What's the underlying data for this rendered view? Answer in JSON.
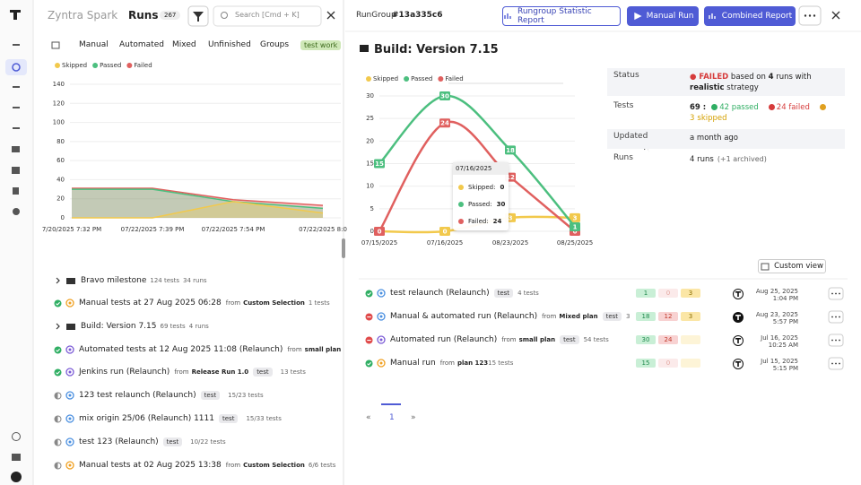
{
  "header": {
    "app": "Zyntra Spark",
    "section": "Runs",
    "count": "267",
    "search": "Search [Cmd + K]"
  },
  "tabs": [
    "Manual",
    "Automated",
    "Mixed",
    "Unfinished",
    "Groups",
    "test work"
  ],
  "left_chart": {
    "type": "area",
    "categories": [
      "7/20/2025 7:32 PM",
      "07/22/2025 7:39 PM",
      "07/22/2025 7:54 PM",
      "07/22/2025 8:0"
    ],
    "series": [
      {
        "name": "Skipped",
        "color": "#f2c94c",
        "values": [
          0,
          0,
          17,
          5
        ]
      },
      {
        "name": "Passed",
        "color": "#4cbf7f",
        "values": [
          30,
          30,
          17,
          10
        ]
      },
      {
        "name": "Failed",
        "color": "#e0605f",
        "values": [
          31,
          31,
          19,
          13
        ]
      }
    ],
    "ylim": [
      0,
      140
    ],
    "yticks": [
      0,
      20,
      40,
      60,
      80,
      100,
      120,
      140
    ],
    "grid": true
  },
  "runs": [
    {
      "group": true,
      "title": "Bravo milestone",
      "tests": "124 tests",
      "runs": "34 runs"
    },
    {
      "status": "passed",
      "kind": "manual",
      "title": "Manual tests at 27 Aug 2025 06:28",
      "from": "from",
      "source": "Custom Selection",
      "tests": "1 tests"
    },
    {
      "group": true,
      "title": "Build: Version 7.15",
      "tests": "69 tests",
      "runs": "4 runs"
    },
    {
      "status": "passed",
      "kind": "auto",
      "title": "Automated tests at 12 Aug 2025 11:08 (Relaunch)",
      "from": "from",
      "source": "small plan"
    },
    {
      "status": "passed",
      "kind": "auto",
      "title": "Jenkins run (Relaunch)",
      "from": "from",
      "source": "Release Run 1.0",
      "tag": "test",
      "tests": "13 tests"
    },
    {
      "status": "gray",
      "kind": "mixed",
      "title": "123 test relaunch (Relaunch)",
      "tag": "test",
      "tests": "15/23 tests"
    },
    {
      "status": "gray",
      "kind": "mixed",
      "title": "mix origin 25/06 (Relaunch) 1111",
      "tag": "test",
      "tests": "15/33 tests"
    },
    {
      "status": "gray",
      "kind": "mixed",
      "title": "test 123  (Relaunch)",
      "tag": "test",
      "tests": "10/22 tests"
    },
    {
      "status": "gray",
      "kind": "manual",
      "title": "Manual tests at 02 Aug 2025 13:38",
      "from": "from",
      "source": "Custom Selection",
      "tests": "6/6 tests"
    }
  ],
  "panel": {
    "label": "RunGroup",
    "id": "#13a335c6",
    "buttons": [
      "Rungroup Statistic Report",
      "Manual Run",
      "Combined Report"
    ],
    "title": "Build: Version 7.15",
    "info": [
      {
        "label": "Status",
        "parts": [
          "● FAILED",
          " based on ",
          "4",
          " runs with ",
          "realistic",
          " strategy"
        ]
      },
      {
        "label": "Tests",
        "parts": [
          "69 :",
          "42 passed",
          "24 failed",
          "3",
          "skipped"
        ]
      },
      {
        "label": "Updated",
        "parts": [
          "a month ago"
        ]
      },
      {
        "label": "Runs",
        "parts": [
          "4 runs",
          "(+1 archived)"
        ]
      }
    ],
    "custom_view": "Custom view",
    "runs": [
      {
        "status": "passed",
        "kind": "mixed",
        "title": "test relaunch (Relaunch)",
        "tag": "test",
        "tests": "4 tests",
        "counts": [
          1,
          0,
          3
        ],
        "date": "Aug 25, 2025 1:04 PM"
      },
      {
        "status": "failed",
        "kind": "mixed",
        "title": "Manual & automated run (Relaunch)",
        "from": "from",
        "source": "Mixed plan",
        "tag": "test",
        "tests": "3",
        "counts": [
          18,
          12,
          3
        ],
        "date": "Aug 23, 2025 5:57 PM"
      },
      {
        "status": "failed",
        "kind": "auto",
        "title": "Automated run (Relaunch)",
        "from": "from",
        "source": "small plan",
        "tag": "test",
        "tests": "54 tests",
        "counts": [
          30,
          24,
          null
        ],
        "date": "Jul 16, 2025 10:25 AM"
      },
      {
        "status": "passed",
        "kind": "manual",
        "title": "Manual run",
        "from": "from",
        "source": "plan 123",
        "tests": "15 tests",
        "counts": [
          15,
          0,
          null
        ],
        "date": "Jul 15, 2025 5:15 PM"
      }
    ],
    "pager": [
      "«",
      "1",
      "»"
    ]
  },
  "right_chart": {
    "type": "line",
    "categories": [
      "07/15/2025",
      "07/16/2025",
      "08/23/2025",
      "08/25/2025"
    ],
    "series": [
      {
        "name": "Skipped",
        "color": "#f2c94c",
        "values": [
          0,
          0,
          3,
          3
        ]
      },
      {
        "name": "Passed",
        "color": "#4cbf7f",
        "values": [
          15,
          30,
          18,
          1
        ]
      },
      {
        "name": "Failed",
        "color": "#e0605f",
        "values": [
          0,
          24,
          12,
          0
        ]
      }
    ],
    "ylim": [
      0,
      30
    ],
    "yticks": [
      0,
      5,
      10,
      15,
      20,
      25,
      30
    ],
    "grid": true,
    "tooltip": {
      "title": "07/16/2025",
      "rows": [
        {
          "label": "Skipped:",
          "value": 0,
          "color": "#f2c94c"
        },
        {
          "label": "Passed:",
          "value": 30,
          "color": "#4cbf7f"
        },
        {
          "label": "Failed:",
          "value": 24,
          "color": "#e0605f"
        }
      ]
    }
  }
}
